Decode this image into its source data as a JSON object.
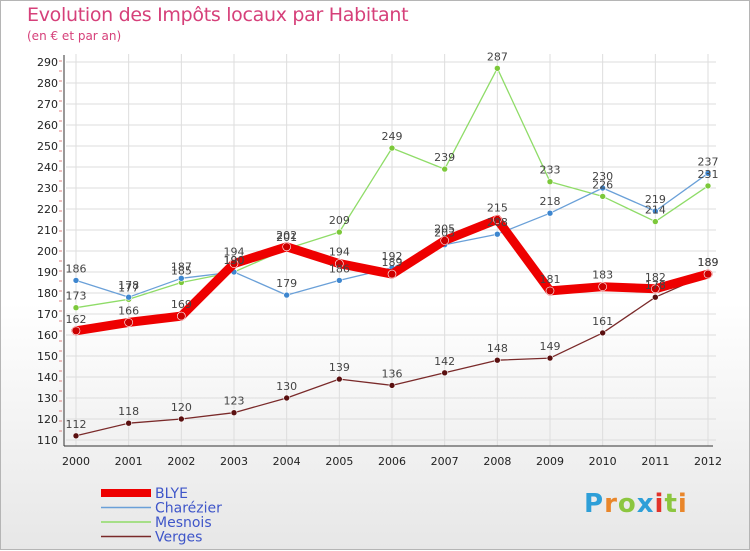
{
  "header": {
    "title": "Evolution des Impôts locaux par Habitant",
    "subtitle": "(en € et par an)"
  },
  "logo": {
    "text": "Proxiti",
    "colors": [
      "#2e9fd8",
      "#e9862a",
      "#8cc63f",
      "#2e9fd8",
      "#e2332b",
      "#8cc63f",
      "#e9862a"
    ]
  },
  "chart_data": {
    "type": "line",
    "x": [
      "2000",
      "2001",
      "2002",
      "2003",
      "2004",
      "2005",
      "2006",
      "2007",
      "2008",
      "2009",
      "2010",
      "2011",
      "2012"
    ],
    "ylim": [
      110,
      290
    ],
    "yticks": [
      110,
      120,
      130,
      140,
      150,
      160,
      170,
      180,
      190,
      200,
      210,
      220,
      230,
      240,
      250,
      260,
      270,
      280,
      290
    ],
    "grid": true,
    "legend_position": "bottom-left",
    "series": [
      {
        "name": "Verges",
        "color": "#7a2a2a",
        "dot": "#5a1010",
        "values": [
          112,
          118,
          120,
          123,
          130,
          139,
          136,
          142,
          148,
          149,
          161,
          178,
          189
        ],
        "labels_above": true
      },
      {
        "name": "Mesnois",
        "color": "#8fdc68",
        "dot": "#7cc83a",
        "values": [
          173,
          177,
          185,
          190,
          201,
          209,
          249,
          239,
          287,
          233,
          226,
          214,
          231
        ],
        "labels_above": true
      },
      {
        "name": "Charézier",
        "color": "#6aa0d8",
        "dot": "#3d86cf",
        "values": [
          186,
          178,
          187,
          190,
          179,
          186,
          192,
          203,
          208,
          218,
          230,
          219,
          237
        ],
        "labels_above": true
      },
      {
        "name": "BLYE",
        "color": "#ee0000",
        "dot": "#cc0000",
        "values": [
          162,
          166,
          169,
          194,
          202,
          194,
          189,
          205,
          215,
          181,
          183,
          182,
          189
        ],
        "labels_above": true,
        "bold": true
      }
    ],
    "legend_order": [
      "BLYE",
      "Charézier",
      "Mesnois",
      "Verges"
    ]
  }
}
